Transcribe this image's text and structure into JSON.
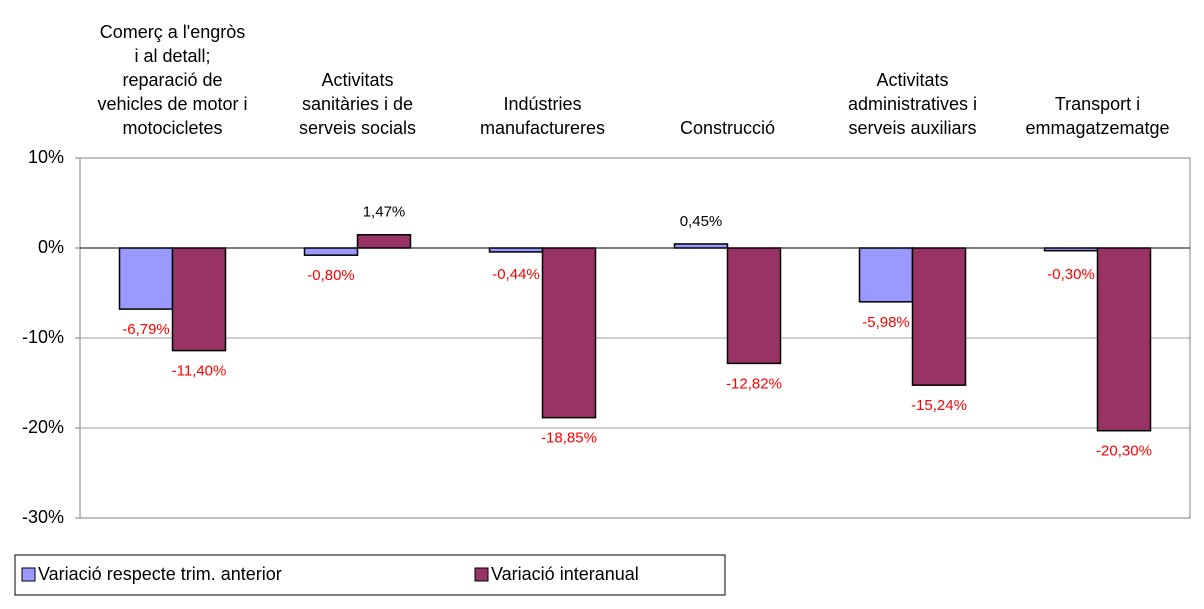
{
  "chart_data": {
    "type": "bar",
    "categories": [
      "Comerç a l'engròs\ni al detall;\nreparació de\nvehicles de motor i\nmotocicletes",
      "Activitats\nsanitàries i de\nserveis socials",
      "Indústries\nmanufactureres",
      "Construcció",
      "Activitats\nadministratives i\nserveis auxiliars",
      "Transport i\nemmagatzematge"
    ],
    "series": [
      {
        "name": "Variació respecte trim. anterior",
        "color": "#9999ff",
        "values": [
          -6.79,
          -0.8,
          -0.44,
          0.45,
          -5.98,
          -0.3
        ],
        "value_labels": [
          "-6,79%",
          "-0,80%",
          "-0,44%",
          "0,45%",
          "-5,98%",
          "-0,30%"
        ]
      },
      {
        "name": "Variació interanual",
        "color": "#993366",
        "values": [
          -11.4,
          1.47,
          -18.85,
          -12.82,
          -15.24,
          -20.3
        ],
        "value_labels": [
          "-11,40%",
          "1,47%",
          "-18,85%",
          "-12,82%",
          "-15,24%",
          "-20,30%"
        ]
      }
    ],
    "ylim": [
      -30,
      10
    ],
    "yticks": [
      {
        "value": 10,
        "label": "10%"
      },
      {
        "value": 0,
        "label": "0%"
      },
      {
        "value": -10,
        "label": "-10%"
      },
      {
        "value": -20,
        "label": "-20%"
      },
      {
        "value": -30,
        "label": "-30%"
      }
    ],
    "grid": true,
    "legend": "bottom"
  }
}
